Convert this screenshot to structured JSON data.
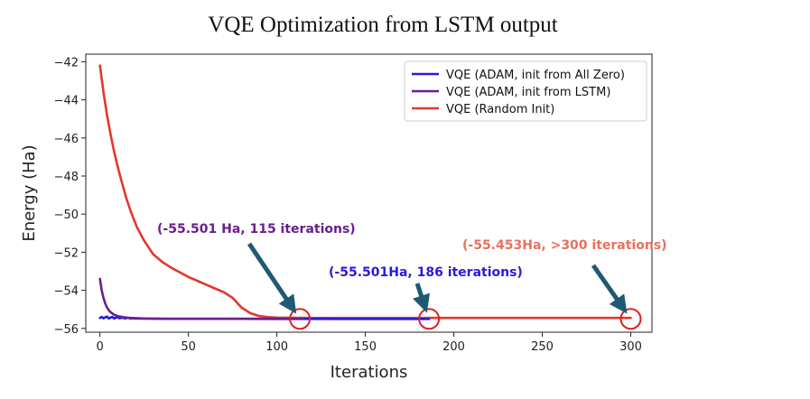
{
  "chart_data": {
    "type": "line",
    "title": "VQE Optimization from LSTM output",
    "xlabel": "Iterations",
    "ylabel": "Energy (Ha)",
    "xlim": [
      -8,
      312
    ],
    "ylim": [
      -56.2,
      -41.6
    ],
    "xticks": [
      0,
      50,
      100,
      150,
      200,
      250,
      300
    ],
    "yticks": [
      -42,
      -44,
      -46,
      -48,
      -50,
      -52,
      -54,
      -56
    ],
    "legend_position": "top-right",
    "grid": false,
    "series": [
      {
        "name": "VQE (ADAM, init from All Zero)",
        "color": "#2b1ad8",
        "x": [
          0,
          1,
          2,
          3,
          4,
          5,
          6,
          7,
          8,
          9,
          10,
          11,
          12,
          13,
          14,
          15,
          16,
          17,
          18,
          20,
          25,
          30,
          40,
          60,
          100,
          150,
          186
        ],
        "y": [
          -55.45,
          -55.4,
          -55.47,
          -55.42,
          -55.38,
          -55.48,
          -55.43,
          -55.4,
          -55.48,
          -55.44,
          -55.41,
          -55.47,
          -55.45,
          -55.43,
          -55.48,
          -55.46,
          -55.44,
          -55.48,
          -55.47,
          -55.48,
          -55.49,
          -55.49,
          -55.5,
          -55.5,
          -55.5,
          -55.501,
          -55.501
        ]
      },
      {
        "name": "VQE (ADAM, init from LSTM)",
        "color": "#6a1f8f",
        "x": [
          0,
          1,
          2,
          3,
          4,
          5,
          6,
          8,
          10,
          13,
          16,
          20,
          25,
          30,
          40,
          60,
          80,
          100,
          115
        ],
        "y": [
          -53.4,
          -54.0,
          -54.4,
          -54.7,
          -54.9,
          -55.05,
          -55.15,
          -55.28,
          -55.35,
          -55.41,
          -55.44,
          -55.46,
          -55.48,
          -55.49,
          -55.5,
          -55.5,
          -55.5,
          -55.501,
          -55.501
        ]
      },
      {
        "name": "VQE (Random Init)",
        "color": "#e0392c",
        "x": [
          0,
          2,
          4,
          6,
          8,
          10,
          12,
          15,
          18,
          21,
          25,
          30,
          35,
          40,
          45,
          50,
          55,
          60,
          65,
          70,
          75,
          80,
          85,
          90,
          95,
          100,
          110,
          120,
          150,
          200,
          250,
          300
        ],
        "y": [
          -42.2,
          -43.6,
          -44.8,
          -45.8,
          -46.7,
          -47.5,
          -48.2,
          -49.2,
          -50.0,
          -50.7,
          -51.4,
          -52.1,
          -52.5,
          -52.8,
          -53.05,
          -53.3,
          -53.5,
          -53.7,
          -53.9,
          -54.1,
          -54.4,
          -54.9,
          -55.2,
          -55.35,
          -55.41,
          -55.43,
          -55.44,
          -55.45,
          -55.45,
          -55.45,
          -55.453,
          -55.453
        ]
      }
    ],
    "annotations": [
      {
        "text": "(-55.501 Ha, 115 iterations)",
        "color": "#6a1f8f",
        "target_x": 113,
        "target_y": -55.5
      },
      {
        "text": "(-55.501Ha, 186 iterations)",
        "color": "#2b1ad8",
        "target_x": 186,
        "target_y": -55.5
      },
      {
        "text": "(-55.453Ha, >300 iterations)",
        "color": "#e8705f",
        "target_x": 300,
        "target_y": -55.5
      }
    ],
    "arrow_color": "#1f5a73",
    "marker_color": "#e02020"
  }
}
